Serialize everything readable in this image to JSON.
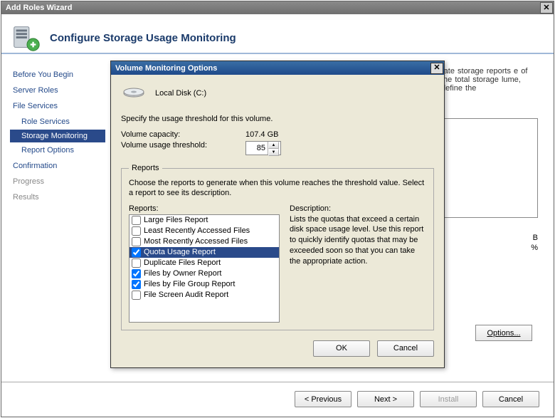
{
  "window": {
    "title": "Add Roles Wizard"
  },
  "header": {
    "title": "Configure Storage Usage Monitoring"
  },
  "sidebar": {
    "items": [
      {
        "label": "Before You Begin",
        "type": "item"
      },
      {
        "label": "Server Roles",
        "type": "item"
      },
      {
        "label": "File Services",
        "type": "section"
      },
      {
        "label": "Role Services",
        "type": "sub"
      },
      {
        "label": "Storage Monitoring",
        "type": "sub-active"
      },
      {
        "label": "Report Options",
        "type": "sub"
      },
      {
        "label": "Confirmation",
        "type": "item"
      },
      {
        "label": "Progress",
        "type": "dim"
      },
      {
        "label": "Results",
        "type": "dim"
      }
    ]
  },
  "content": {
    "hint_partial": "rate storage reports e of the total storage lume, define the",
    "below_rows": [
      [
        "",
        "B"
      ],
      [
        "",
        "%"
      ]
    ],
    "options_btn": "Options..."
  },
  "dialog": {
    "title": "Volume Monitoring Options",
    "disk_label": "Local Disk (C:)",
    "specify": "Specify the usage threshold for this volume.",
    "capacity_label": "Volume capacity:",
    "capacity_value": "107.4 GB",
    "threshold_label": "Volume usage threshold:",
    "threshold_value": "85",
    "reports_legend": "Reports",
    "reports_intro": "Choose the reports to generate when this volume reaches the threshold value. Select a report to see its description.",
    "reports_label": "Reports:",
    "description_label": "Description:",
    "description_text": "Lists the quotas that exceed a certain disk space usage level. Use this report to quickly identify quotas that may be exceeded soon so that you can take the appropriate action.",
    "reports": [
      {
        "label": "Large Files Report",
        "checked": false,
        "selected": false
      },
      {
        "label": "Least Recently Accessed Files",
        "checked": false,
        "selected": false
      },
      {
        "label": "Most Recently Accessed Files",
        "checked": false,
        "selected": false
      },
      {
        "label": "Quota Usage Report",
        "checked": true,
        "selected": true
      },
      {
        "label": "Duplicate Files Report",
        "checked": false,
        "selected": false
      },
      {
        "label": "Files by Owner Report",
        "checked": true,
        "selected": false
      },
      {
        "label": "Files by File Group Report",
        "checked": true,
        "selected": false
      },
      {
        "label": "File Screen Audit Report",
        "checked": false,
        "selected": false
      }
    ],
    "ok": "OK",
    "cancel": "Cancel"
  },
  "footer": {
    "previous": "< Previous",
    "next": "Next >",
    "install": "Install",
    "cancel": "Cancel"
  }
}
